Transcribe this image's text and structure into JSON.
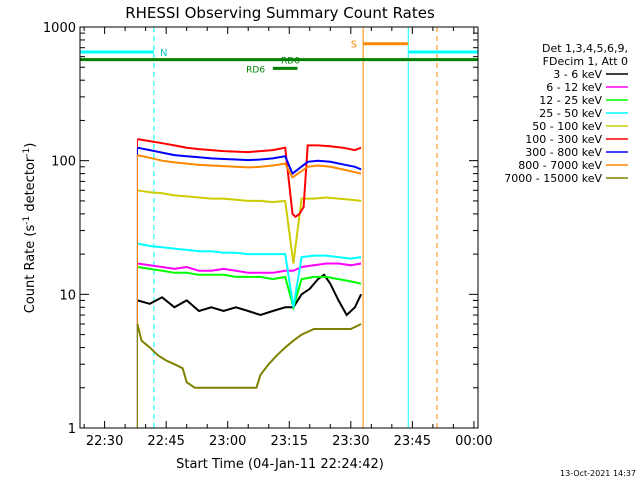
{
  "chart_data": {
    "type": "line",
    "title": "RHESSI Observing Summary Count Rates",
    "xlabel": "Start Time (04-Jan-11 22:24:42)",
    "ylabel_main": "Count Rate (s",
    "ylabel_sup1": "-1",
    "ylabel_mid": " detector",
    "ylabel_sup2": "-1",
    "ylabel_end": ")",
    "yscale": "log",
    "xlim_min": [
      0,
      97
    ],
    "ylim": [
      1,
      1000
    ],
    "x_ticks": [
      {
        "min": 6,
        "label": "22:30"
      },
      {
        "min": 21,
        "label": "22:45"
      },
      {
        "min": 36,
        "label": "23:00"
      },
      {
        "min": 51,
        "label": "23:15"
      },
      {
        "min": 66,
        "label": "23:30"
      },
      {
        "min": 81,
        "label": "23:45"
      },
      {
        "min": 96,
        "label": "00:00"
      }
    ],
    "y_ticks": [
      {
        "value": 1,
        "label": "1"
      },
      {
        "value": 10,
        "label": "10"
      },
      {
        "value": 100,
        "label": "100"
      },
      {
        "value": 1000,
        "label": "1000"
      }
    ],
    "legend_header": [
      "Det 1,3,4,5,6,9,",
      "FDecim 1, Att 0"
    ],
    "series": [
      {
        "name": "3 - 6 keV",
        "color": "#000000",
        "x": [
          14,
          17,
          20,
          23,
          26,
          29,
          32,
          35,
          38,
          41,
          44,
          47,
          50,
          52,
          54,
          56,
          58,
          59.5,
          61,
          63,
          65,
          67,
          68.5
        ],
        "values": [
          9,
          8.5,
          9.5,
          8,
          9,
          7.5,
          8,
          7.5,
          8,
          7.5,
          7,
          7.5,
          8,
          8,
          10,
          11,
          13,
          14,
          12,
          9,
          7,
          8,
          10
        ]
      },
      {
        "name": "6 - 12 keV",
        "color": "#ff00ff",
        "x": [
          14,
          17,
          20,
          23,
          26,
          29,
          32,
          35,
          38,
          41,
          44,
          47,
          50,
          52,
          54,
          57,
          60,
          63,
          66,
          68.5
        ],
        "values": [
          17,
          16.5,
          16,
          15.5,
          16,
          15,
          15,
          15.5,
          15,
          14.5,
          14.5,
          14.5,
          15,
          15,
          16,
          16.5,
          17,
          17,
          16.5,
          17
        ]
      },
      {
        "name": "12 - 25 keV",
        "color": "#00ff00",
        "x": [
          14,
          17,
          20,
          23,
          26,
          29,
          32,
          35,
          38,
          41,
          44,
          47,
          50,
          52,
          54,
          57,
          60,
          63,
          66,
          68.5
        ],
        "values": [
          16,
          15.5,
          15,
          14.5,
          14.5,
          14,
          14,
          14,
          13.5,
          13.5,
          13.5,
          13,
          13.5,
          8,
          13,
          13.5,
          13.5,
          13,
          12.5,
          12
        ]
      },
      {
        "name": "25 - 50 keV",
        "color": "#00ffff",
        "x": [
          14,
          17,
          20,
          23,
          26,
          29,
          32,
          35,
          38,
          41,
          44,
          47,
          50,
          52,
          54,
          57,
          60,
          63,
          66,
          68.5
        ],
        "values": [
          24,
          23,
          22.5,
          22,
          21.5,
          21,
          21,
          20.5,
          20.5,
          20,
          20,
          20,
          20,
          8,
          19,
          19.5,
          19.5,
          19,
          18.5,
          19
        ]
      },
      {
        "name": "50 - 100 keV",
        "color": "#cccc00",
        "x": [
          14,
          17,
          20,
          23,
          26,
          29,
          32,
          35,
          38,
          41,
          44,
          47,
          50,
          52,
          54,
          57,
          60,
          63,
          66,
          68.5
        ],
        "values": [
          60,
          58,
          57,
          55,
          54,
          53,
          52,
          52,
          51,
          50,
          50,
          49,
          50,
          17,
          52,
          52,
          53,
          52,
          51,
          50
        ]
      },
      {
        "name": "100 - 300 keV",
        "color": "#ff0000",
        "x": [
          14,
          17,
          20,
          23,
          26,
          29,
          32,
          35,
          38,
          41,
          44,
          47,
          50,
          51.8,
          52.5,
          53.5,
          54.5,
          55.5,
          58,
          61,
          64,
          67,
          68.5
        ],
        "values": [
          145,
          140,
          135,
          130,
          125,
          122,
          120,
          118,
          117,
          116,
          118,
          120,
          125,
          40,
          38,
          40,
          45,
          130,
          130,
          128,
          125,
          120,
          125
        ]
      },
      {
        "name": "300 - 800 keV",
        "color": "#0000ff",
        "x": [
          14,
          17,
          20,
          23,
          26,
          29,
          32,
          35,
          38,
          41,
          44,
          47,
          50,
          51.8,
          55.5,
          58,
          61,
          64,
          67,
          68.5
        ],
        "values": [
          125,
          120,
          115,
          110,
          108,
          106,
          104,
          103,
          102,
          101,
          102,
          104,
          108,
          80,
          98,
          100,
          98,
          94,
          90,
          86
        ]
      },
      {
        "name": "800 - 7000 keV",
        "color": "#ff8800",
        "x": [
          14,
          17,
          20,
          23,
          26,
          29,
          32,
          35,
          38,
          41,
          44,
          47,
          50,
          51.8,
          55.5,
          58,
          61,
          64,
          67,
          68.5
        ],
        "values": [
          110,
          105,
          100,
          97,
          95,
          93,
          92,
          91,
          90,
          89,
          90,
          92,
          95,
          75,
          90,
          92,
          90,
          86,
          82,
          80
        ]
      },
      {
        "name": "7000 - 15000 keV",
        "color": "#808000",
        "x": [
          14,
          15,
          17,
          19,
          21,
          23,
          25,
          26,
          28,
          32,
          36,
          40,
          43,
          44,
          46,
          48,
          50,
          52,
          54,
          57,
          60,
          63,
          66,
          68.5
        ],
        "values": [
          6,
          4.5,
          4,
          3.5,
          3.2,
          3,
          2.8,
          2.2,
          2,
          2,
          2,
          2,
          2,
          2.5,
          3,
          3.5,
          4,
          4.5,
          5,
          5.5,
          5.5,
          5.5,
          5.5,
          6
        ]
      }
    ],
    "annotations": {
      "night_label": "N",
      "saa_label": "S",
      "rd0_label": "RD0",
      "rd6_label": "RD6"
    },
    "bars": {
      "night": {
        "color": "#00ffff",
        "intervals": [
          [
            0,
            18
          ],
          [
            80,
            97
          ]
        ],
        "value": 650
      },
      "saa": {
        "color": "#ff8800",
        "intervals": [
          [
            69,
            80
          ]
        ],
        "value": 750
      },
      "rd0": {
        "color": "#008000",
        "intervals": [
          [
            0,
            97
          ]
        ],
        "value": 570
      },
      "rd6": {
        "color": "#008000",
        "intervals": [
          [
            47,
            53
          ]
        ],
        "value": 490
      }
    },
    "vlines": [
      {
        "min": 0,
        "color": "#00ffff",
        "style": "solid"
      },
      {
        "min": 18,
        "color": "#00ffff",
        "style": "dashed"
      },
      {
        "min": 69,
        "color": "#ff8800",
        "style": "solid"
      },
      {
        "min": 80,
        "color": "#00ffff",
        "style": "solid"
      },
      {
        "min": 87,
        "color": "#ff8800",
        "style": "dashed"
      },
      {
        "min": 97,
        "color": "#00ffff",
        "style": "dashed"
      }
    ],
    "timestamp": "13-Oct-2021 14:37"
  }
}
